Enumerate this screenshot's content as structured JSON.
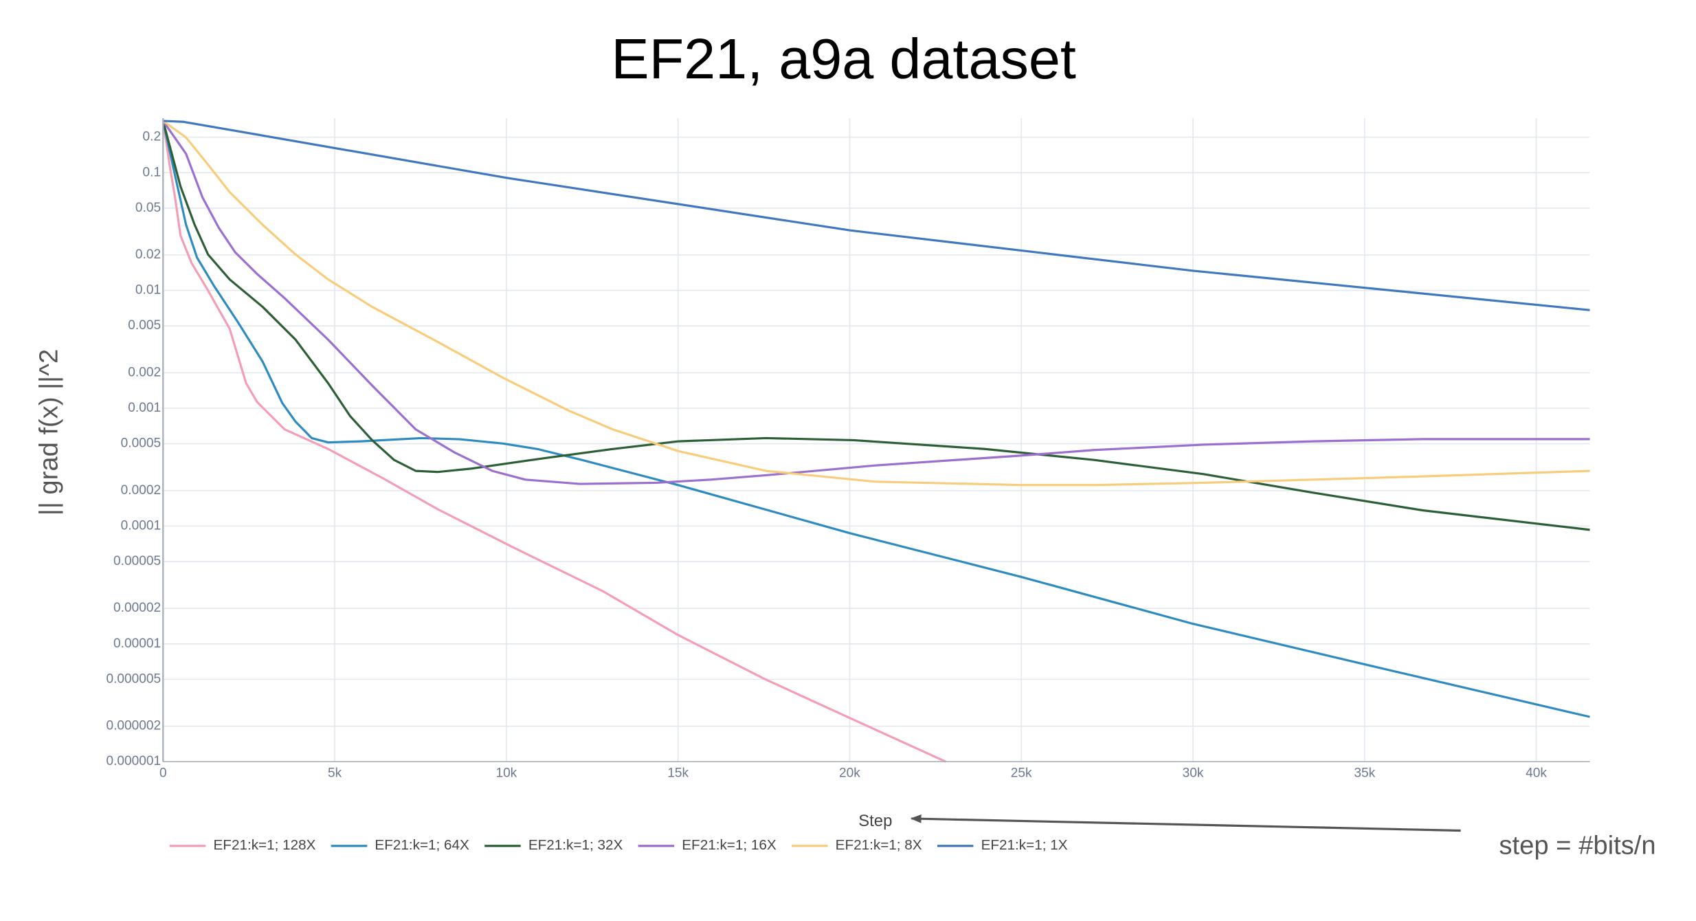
{
  "chart_data": {
    "type": "line",
    "title": "EF21, a9a dataset",
    "xlabel": "Step",
    "ylabel": "|| grad f(x) ||^2",
    "annotation": "step = #bits/n",
    "log_y": true,
    "grid": true,
    "legend": "bottom",
    "xlim": [
      0,
      41560
    ],
    "ylim": [
      1e-06,
      0.29
    ],
    "xticks": [
      0,
      {
        "value": 5000,
        "label": "5k"
      },
      {
        "value": 10000,
        "label": "10k"
      },
      {
        "value": 15000,
        "label": "15k"
      },
      {
        "value": 20000,
        "label": "20k"
      },
      {
        "value": 25000,
        "label": "25k"
      },
      {
        "value": 30000,
        "label": "30k"
      },
      {
        "value": 35000,
        "label": "35k"
      },
      {
        "value": 40000,
        "label": "40k"
      }
    ],
    "yticks": [
      0.2,
      0.1,
      0.05,
      0.02,
      0.01,
      0.005,
      0.002,
      0.001,
      0.0005,
      0.0002,
      0.0001,
      5e-05,
      2e-05,
      1e-05,
      5e-06,
      2e-06,
      1e-06
    ],
    "series": [
      {
        "name": "EF21:k=1; 128X",
        "color": "#f49db4",
        "x": [
          0,
          190,
          350,
          510,
          830,
          1310,
          1940,
          2420,
          2740,
          3540,
          4810,
          6410,
          8000,
          10200,
          12800,
          15000,
          17500,
          20000,
          22800
        ],
        "values": [
          0.275,
          0.117,
          0.0615,
          0.0291,
          0.0171,
          0.01,
          0.00473,
          0.00163,
          0.00113,
          0.000662,
          0.000451,
          0.000254,
          0.000139,
          6.59e-05,
          2.81e-05,
          1.19e-05,
          5.07e-06,
          2.35e-06,
          1e-06
        ]
      },
      {
        "name": "EF21:k=1; 64X",
        "color": "#2e8bc0",
        "x": [
          0,
          350,
          670,
          990,
          1470,
          2200,
          2900,
          3470,
          3860,
          4330,
          4810,
          5770,
          7520,
          8640,
          9900,
          10900,
          12200,
          15000,
          20000,
          25000,
          30000,
          35000,
          41560
        ],
        "values": [
          0.275,
          0.0942,
          0.0361,
          0.019,
          0.0111,
          0.00527,
          0.00249,
          0.00111,
          0.000769,
          0.000558,
          0.000513,
          0.000524,
          0.000558,
          0.000546,
          0.000502,
          0.000451,
          0.000364,
          0.000223,
          8.71e-05,
          3.7e-05,
          1.48e-05,
          6.7e-06,
          2.4e-06
        ]
      },
      {
        "name": "EF21:k=1; 32X",
        "color": "#2d5f36",
        "x": [
          0,
          510,
          920,
          1310,
          1940,
          2900,
          3860,
          4810,
          5450,
          6090,
          6730,
          7360,
          8000,
          8960,
          11190,
          13100,
          15010,
          17560,
          20110,
          23940,
          27120,
          30310,
          33500,
          36690,
          41560
        ],
        "values": [
          0.275,
          0.0762,
          0.0361,
          0.0202,
          0.0124,
          0.00726,
          0.00382,
          0.00163,
          0.000857,
          0.000536,
          0.000364,
          0.000294,
          0.000288,
          0.000307,
          0.00038,
          0.000451,
          0.000524,
          0.000558,
          0.000536,
          0.000451,
          0.000364,
          0.000276,
          0.000192,
          0.000136,
          9.29e-05
        ]
      },
      {
        "name": "EF21:k=1; 16X",
        "color": "#9b6fcf",
        "x": [
          0,
          670,
          1150,
          1630,
          2100,
          2740,
          3540,
          4810,
          6090,
          7360,
          8480,
          9590,
          10550,
          12140,
          14370,
          15960,
          17560,
          20750,
          25010,
          27120,
          30310,
          33500,
          36690,
          41560
        ],
        "values": [
          0.275,
          0.1445,
          0.0615,
          0.0338,
          0.0211,
          0.0138,
          0.0086,
          0.00382,
          0.00156,
          0.000662,
          0.000423,
          0.000294,
          0.000248,
          0.000228,
          0.000233,
          0.000248,
          0.00027,
          0.000327,
          0.000397,
          0.000442,
          0.000491,
          0.000524,
          0.000547,
          0.000547
        ]
      },
      {
        "name": "EF21:k=1; 8X",
        "color": "#f8cc7a",
        "x": [
          0,
          670,
          1310,
          1940,
          2900,
          3860,
          4810,
          6090,
          8000,
          9910,
          11820,
          13100,
          15010,
          17560,
          20750,
          25010,
          27120,
          30310,
          33500,
          36690,
          41560
        ],
        "values": [
          0.275,
          0.199,
          0.117,
          0.0684,
          0.0361,
          0.0202,
          0.0124,
          0.00726,
          0.00366,
          0.00181,
          0.000953,
          0.000662,
          0.000433,
          0.000294,
          0.000238,
          0.000223,
          0.000223,
          0.000233,
          0.000248,
          0.000264,
          0.000294
        ]
      },
      {
        "name": "EF21:k=1; 1X",
        "color": "#3f78bf",
        "x": [
          0,
          600,
          10000,
          20000,
          30000,
          41560
        ],
        "values": [
          0.275,
          0.27,
          0.0904,
          0.0324,
          0.0147,
          0.00681
        ]
      }
    ]
  }
}
